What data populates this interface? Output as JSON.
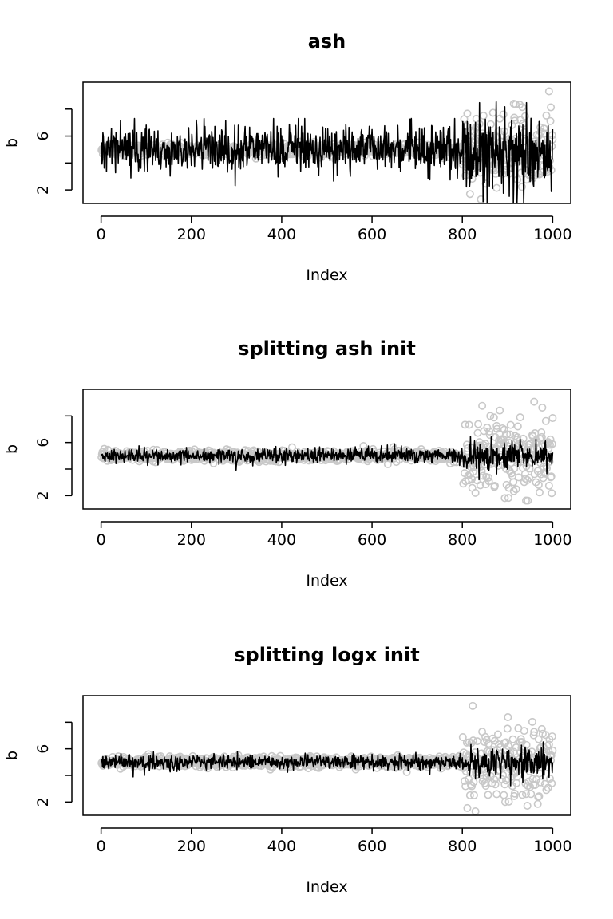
{
  "chart_data": [
    {
      "type": "line",
      "title": "ash",
      "xlabel": "Index",
      "ylabel": "b",
      "xlim": [
        -40,
        1040
      ],
      "ylim": [
        1.0,
        10.0
      ],
      "xticks": [
        0,
        200,
        400,
        600,
        800,
        1000
      ],
      "yticks": [
        2,
        4,
        6,
        8
      ],
      "ytick_labels": [
        "2",
        "",
        "6",
        ""
      ],
      "grid": false,
      "legend": "none",
      "n_points": 1000,
      "series": [
        {
          "role": "points",
          "marker": "open-circle",
          "color": "#c8c8c8",
          "x_range": [
            1,
            1000
          ],
          "segments": [
            {
              "x_from": 1,
              "x_to": 800,
              "center": 5.0,
              "spread": 0.2
            },
            {
              "x_from": 801,
              "x_to": 1000,
              "center": 4.9,
              "spread": 1.4,
              "min": 1.3,
              "max": 9.5
            }
          ]
        },
        {
          "role": "line",
          "marker": "none",
          "color": "#000000",
          "x_range": [
            1,
            1000
          ],
          "segments": [
            {
              "x_from": 1,
              "x_to": 800,
              "center": 5.0,
              "spread": 0.85,
              "min": 1.5,
              "max": 7.3
            },
            {
              "x_from": 801,
              "x_to": 1000,
              "center": 4.8,
              "spread": 1.5,
              "min": 1.0,
              "max": 9.6
            }
          ]
        }
      ]
    },
    {
      "type": "line",
      "title": "splitting ash init",
      "xlabel": "Index",
      "ylabel": "b",
      "xlim": [
        -40,
        1040
      ],
      "ylim": [
        1.0,
        10.0
      ],
      "xticks": [
        0,
        200,
        400,
        600,
        800,
        1000
      ],
      "yticks": [
        2,
        4,
        6,
        8
      ],
      "ytick_labels": [
        "2",
        "",
        "6",
        ""
      ],
      "grid": false,
      "legend": "none",
      "n_points": 1000,
      "series": [
        {
          "role": "points",
          "marker": "open-circle",
          "color": "#c8c8c8",
          "x_range": [
            1,
            1000
          ],
          "segments": [
            {
              "x_from": 1,
              "x_to": 800,
              "center": 5.0,
              "spread": 0.2
            },
            {
              "x_from": 801,
              "x_to": 1000,
              "center": 4.9,
              "spread": 1.4,
              "min": 1.3,
              "max": 9.5
            }
          ]
        },
        {
          "role": "line",
          "marker": "none",
          "color": "#000000",
          "x_range": [
            1,
            1000
          ],
          "segments": [
            {
              "x_from": 1,
              "x_to": 800,
              "center": 5.0,
              "spread": 0.28,
              "min": 3.7,
              "max": 6.3
            },
            {
              "x_from": 801,
              "x_to": 1000,
              "center": 4.9,
              "spread": 0.55,
              "min": 3.1,
              "max": 7.1
            }
          ]
        }
      ]
    },
    {
      "type": "line",
      "title": "splitting logx init",
      "xlabel": "Index",
      "ylabel": "b",
      "xlim": [
        -40,
        1040
      ],
      "ylim": [
        1.0,
        10.0
      ],
      "xticks": [
        0,
        200,
        400,
        600,
        800,
        1000
      ],
      "yticks": [
        2,
        4,
        6,
        8
      ],
      "ytick_labels": [
        "2",
        "",
        "6",
        ""
      ],
      "grid": false,
      "legend": "none",
      "n_points": 1000,
      "series": [
        {
          "role": "points",
          "marker": "open-circle",
          "color": "#c8c8c8",
          "x_range": [
            1,
            1000
          ],
          "segments": [
            {
              "x_from": 1,
              "x_to": 800,
              "center": 5.0,
              "spread": 0.2
            },
            {
              "x_from": 801,
              "x_to": 1000,
              "center": 4.9,
              "spread": 1.4,
              "min": 1.3,
              "max": 9.5
            }
          ]
        },
        {
          "role": "line",
          "marker": "none",
          "color": "#000000",
          "x_range": [
            1,
            1000
          ],
          "segments": [
            {
              "x_from": 1,
              "x_to": 800,
              "center": 5.0,
              "spread": 0.28,
              "min": 3.7,
              "max": 6.3
            },
            {
              "x_from": 801,
              "x_to": 1000,
              "center": 4.9,
              "spread": 0.55,
              "min": 3.1,
              "max": 7.1
            }
          ]
        }
      ]
    }
  ]
}
